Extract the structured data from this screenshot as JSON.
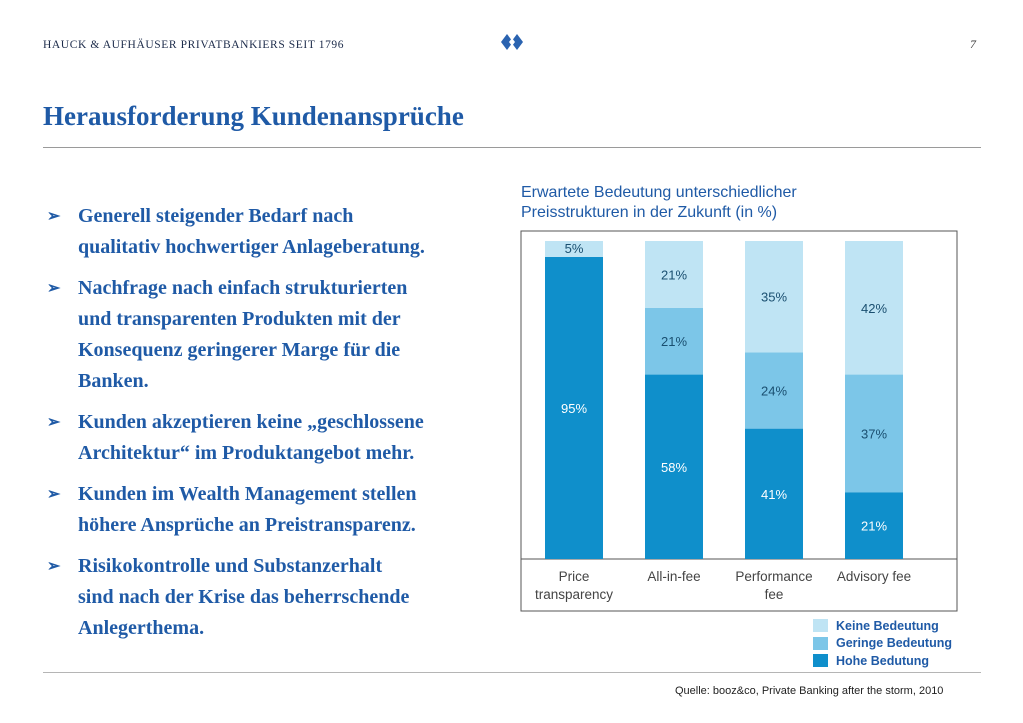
{
  "header": {
    "company": "HAUCK & AUFHÄUSER PRIVATBANKIERS SEIT 1796",
    "page_number": "7",
    "logo_icon": "diamond-logo-icon"
  },
  "title": "Herausforderung Kundenansprüche",
  "bullets": [
    "Generell steigender Bedarf nach\nqualitativ hochwertiger Anlageberatung.",
    "Nachfrage nach einfach strukturierten\nund transparenten Produkten mit der\nKonsequenz geringerer Marge für die\nBanken.",
    "Kunden akzeptieren keine „geschlossene\nArchitektur“ im Produktangebot mehr.",
    "Kunden im Wealth Management stellen\nhöhere Ansprüche an Preistransparenz.",
    "Risikokontrolle und Substanzerhalt\nsind nach der Krise das beherrschende\nAnlegerthema."
  ],
  "bullet_icon": "arrow-bullet-icon",
  "chart_data": {
    "type": "bar",
    "stacked": true,
    "title": "Erwartete Bedeutung unterschiedlicher\nPreisstrukturen in der Zukunft (in %)",
    "categories": [
      "Price\ntransparency",
      "All-in-fee",
      "Performance\nfee",
      "Advisory fee"
    ],
    "series": [
      {
        "name": "Hohe Bedutung",
        "values": [
          95,
          58,
          41,
          21
        ],
        "color": "#0f8fcb",
        "label_color": "#ffffff"
      },
      {
        "name": "Geringe Bedeutung",
        "values": [
          0,
          21,
          24,
          37
        ],
        "color": "#7cc6e8",
        "label_color": "#1a4f70"
      },
      {
        "name": "Keine Bedeutung",
        "values": [
          5,
          21,
          35,
          42
        ],
        "color": "#bfe4f4",
        "label_color": "#1a4f70"
      }
    ],
    "ylim": [
      0,
      100
    ],
    "legend_position": "bottom-right",
    "legend_order": [
      "Keine Bedeutung",
      "Geringe Bedeutung",
      "Hohe Bedutung"
    ]
  },
  "source": "Quelle: booz&co, Private Banking after the storm, 2010"
}
